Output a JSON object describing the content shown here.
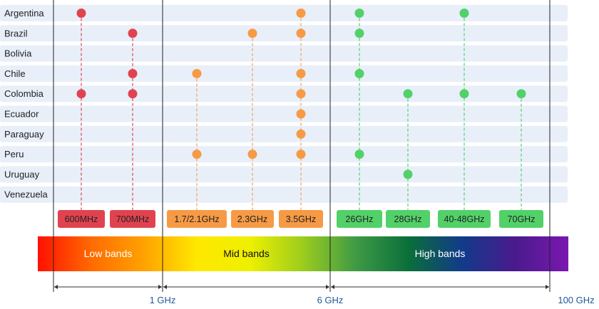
{
  "chart_data": {
    "type": "dot-matrix",
    "title": "",
    "countries": [
      "Argentina",
      "Brazil",
      "Bolivia",
      "Chile",
      "Colombia",
      "Ecuador",
      "Paraguay",
      "Peru",
      "Uruguay",
      "Venezuela"
    ],
    "bands": [
      {
        "label": "600MHz",
        "group": "low"
      },
      {
        "label": "700MHz",
        "group": "low"
      },
      {
        "label": "1.7/2.1GHz",
        "group": "mid"
      },
      {
        "label": "2.3GHz",
        "group": "mid"
      },
      {
        "label": "3.5GHz",
        "group": "mid"
      },
      {
        "label": "26GHz",
        "group": "high"
      },
      {
        "label": "28GHz",
        "group": "high"
      },
      {
        "label": "40-48GHz",
        "group": "high"
      },
      {
        "label": "70GHz",
        "group": "high"
      }
    ],
    "allocations": {
      "Argentina": [
        "600MHz",
        "3.5GHz",
        "26GHz",
        "40-48GHz"
      ],
      "Brazil": [
        "700MHz",
        "2.3GHz",
        "3.5GHz",
        "26GHz"
      ],
      "Bolivia": [],
      "Chile": [
        "700MHz",
        "1.7/2.1GHz",
        "3.5GHz",
        "26GHz"
      ],
      "Colombia": [
        "600MHz",
        "700MHz",
        "3.5GHz",
        "28GHz",
        "40-48GHz",
        "70GHz"
      ],
      "Ecuador": [
        "3.5GHz"
      ],
      "Paraguay": [
        "3.5GHz"
      ],
      "Peru": [
        "1.7/2.1GHz",
        "2.3GHz",
        "3.5GHz",
        "26GHz"
      ],
      "Uruguay": [
        "28GHz"
      ],
      "Venezuela": []
    },
    "groups": [
      {
        "key": "low",
        "label": "Low bands",
        "color": "#e0434f",
        "line_color": "#e0434f"
      },
      {
        "key": "mid",
        "label": "Mid bands",
        "color": "#f69a45",
        "line_color": "#f3a055"
      },
      {
        "key": "high",
        "label": "High bands",
        "color": "#52d169",
        "line_color": "#52d169"
      }
    ],
    "axis": {
      "boundaries": [
        "1 GHz",
        "6 GHz",
        "100 GHz"
      ]
    }
  },
  "colors": {
    "row_background": "#e8eff9",
    "spectrum": [
      "#ff1000",
      "#ff6a00",
      "#ffa200",
      "#ffe800",
      "#eef000",
      "#9ccc1e",
      "#3e9a45",
      "#0a6e3a",
      "#123a8a",
      "#4a1a8c",
      "#7a18b0"
    ],
    "divider": "#222222",
    "axis_text": "#1e5a9a"
  }
}
